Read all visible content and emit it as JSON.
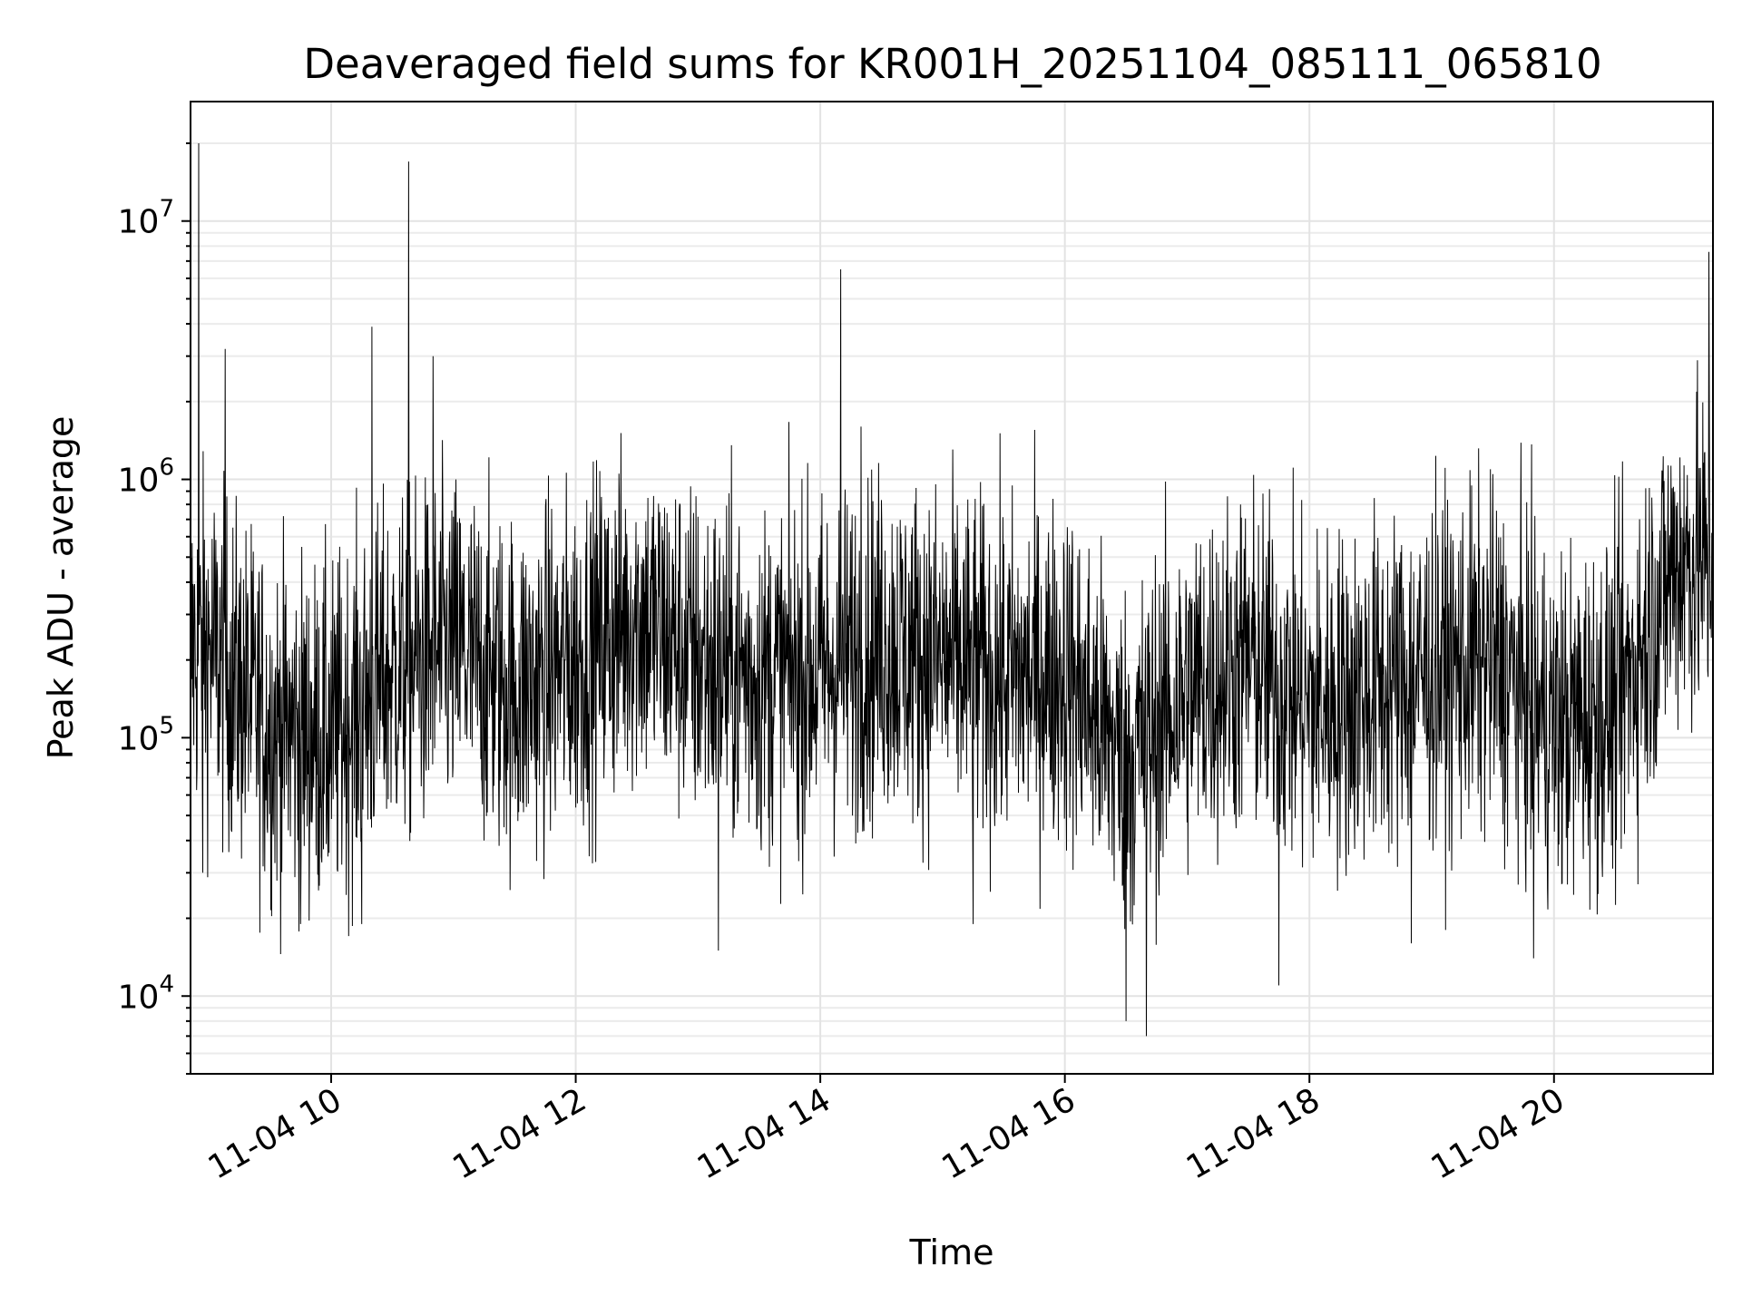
{
  "chart_data": {
    "type": "line",
    "title": "Deaveraged field sums for KR001H_20251104_085111_065810",
    "xlabel": "Time",
    "ylabel": "Peak ADU - average",
    "yscale": "log",
    "xlim": [
      "11-04 08:51",
      "11-04 21:18"
    ],
    "ylim": [
      5000,
      29000000
    ],
    "grid": true,
    "line_color": "#000000",
    "x_ticks": [
      {
        "value": "11-04 10:00",
        "label": "11-04 10"
      },
      {
        "value": "11-04 12:00",
        "label": "11-04 12"
      },
      {
        "value": "11-04 14:00",
        "label": "11-04 14"
      },
      {
        "value": "11-04 16:00",
        "label": "11-04 16"
      },
      {
        "value": "11-04 18:00",
        "label": "11-04 18"
      },
      {
        "value": "11-04 20:00",
        "label": "11-04 20"
      }
    ],
    "y_ticks": [
      {
        "value": 10000,
        "base": "10",
        "exp": "4"
      },
      {
        "value": 100000,
        "base": "10",
        "exp": "5"
      },
      {
        "value": 1000000,
        "base": "10",
        "exp": "6"
      },
      {
        "value": 10000000,
        "base": "10",
        "exp": "7"
      }
    ],
    "series": [
      {
        "x": [
          "11-04 09:00",
          "11-04 09:30",
          "11-04 10:00",
          "11-04 10:30",
          "11-04 11:00",
          "11-04 11:30",
          "11-04 12:00",
          "11-04 12:30",
          "11-04 13:00",
          "11-04 13:30",
          "11-04 14:00",
          "11-04 14:30",
          "11-04 15:00",
          "11-04 15:30",
          "11-04 16:00",
          "11-04 16:30",
          "11-04 17:00",
          "11-04 17:30",
          "11-04 18:00",
          "11-04 18:30",
          "11-04 19:00",
          "11-04 19:30",
          "11-04 20:00",
          "11-04 20:30",
          "11-04 21:00"
        ],
        "y": [
          220000,
          110000,
          100000,
          180000,
          220000,
          150000,
          200000,
          300000,
          200000,
          170000,
          180000,
          230000,
          200000,
          170000,
          180000,
          80000,
          150000,
          200000,
          130000,
          150000,
          180000,
          200000,
          110000,
          130000,
          480000
        ],
        "spikes": [
          {
            "x": "11-04 08:55",
            "y": 20000000
          },
          {
            "x": "11-04 09:08",
            "y": 3200000
          },
          {
            "x": "11-04 10:20",
            "y": 3900000
          },
          {
            "x": "11-04 10:38",
            "y": 17000000
          },
          {
            "x": "11-04 10:50",
            "y": 3000000
          },
          {
            "x": "11-04 14:10",
            "y": 6500000
          },
          {
            "x": "11-04 14:20",
            "y": 1600000
          },
          {
            "x": "11-04 21:16",
            "y": 7600000
          }
        ],
        "dips": [
          {
            "x": "11-04 08:57",
            "y": 30000
          },
          {
            "x": "11-04 09:45",
            "y": 19000
          },
          {
            "x": "11-04 10:15",
            "y": 19000
          },
          {
            "x": "11-04 13:10",
            "y": 15000
          },
          {
            "x": "11-04 15:15",
            "y": 19000
          },
          {
            "x": "11-04 16:30",
            "y": 8000
          },
          {
            "x": "11-04 16:40",
            "y": 7000
          },
          {
            "x": "11-04 17:45",
            "y": 11000
          },
          {
            "x": "11-04 18:50",
            "y": 16000
          },
          {
            "x": "11-04 19:50",
            "y": 14000
          }
        ]
      }
    ]
  }
}
